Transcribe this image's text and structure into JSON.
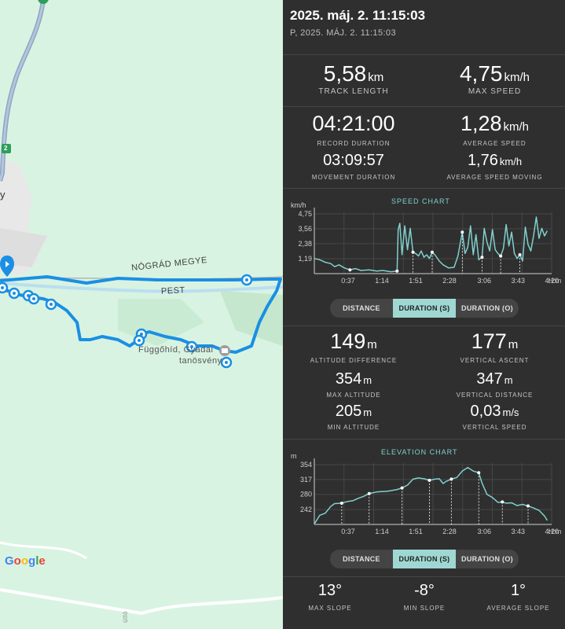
{
  "map": {
    "county_label": "NÓGRÁD MEGYE",
    "pest_label": "PEST",
    "poi_label_1": "Függőhíd, Gyadai",
    "poi_label_2": "tanösvény",
    "road_number": "2",
    "town_fragment": "y",
    "road_fragment": "útló",
    "google_logo": [
      "G",
      "o",
      "o",
      "g",
      "l",
      "e"
    ],
    "track_color": "#1a8fe3",
    "map_color": "#d9f3e2"
  },
  "header": {
    "title": "2025. máj. 2. 11:15:03",
    "subtitle": "P, 2025. MÁJ. 2. 11:15:03"
  },
  "stats_top": {
    "track_length": {
      "value": "5,58",
      "unit": "km",
      "label": "TRACK LENGTH"
    },
    "max_speed": {
      "value": "4,75",
      "unit": "km/h",
      "label": "MAX SPEED"
    },
    "record_duration": {
      "value": "04:21:00",
      "label": "RECORD DURATION"
    },
    "average_speed": {
      "value": "1,28",
      "unit": "km/h",
      "label": "AVERAGE SPEED"
    },
    "movement_duration": {
      "value": "03:09:57",
      "label": "MOVEMENT DURATION"
    },
    "avg_speed_moving": {
      "value": "1,76",
      "unit": "km/h",
      "label": "AVERAGE SPEED MOVING"
    }
  },
  "speed_chart": {
    "title": "SPEED CHART",
    "unit_label": "km/h",
    "y_ticks": [
      "4,75",
      "3,56",
      "2,38",
      "1,19"
    ],
    "x_ticks": [
      "0:37",
      "1:14",
      "1:51",
      "2:28",
      "3:06",
      "3:43",
      "4:20"
    ],
    "x_unit": "H:m",
    "tabs": [
      "DISTANCE",
      "DURATION (S)",
      "DURATION (O)"
    ],
    "active_tab": 1
  },
  "stats_mid": {
    "altitude_difference": {
      "value": "149",
      "unit": "m",
      "label": "ALTITUDE DIFFERENCE"
    },
    "vertical_ascent": {
      "value": "177",
      "unit": "m",
      "label": "VERTICAL ASCENT"
    },
    "max_altitude": {
      "value": "354",
      "unit": "m",
      "label": "MAX ALTITUDE"
    },
    "vertical_distance": {
      "value": "347",
      "unit": "m",
      "label": "VERTICAL DISTANCE"
    },
    "min_altitude": {
      "value": "205",
      "unit": "m",
      "label": "MIN ALTITUDE"
    },
    "vertical_speed": {
      "value": "0,03",
      "unit": "m/s",
      "label": "VERTICAL SPEED"
    }
  },
  "elevation_chart": {
    "title": "ELEVATION CHART",
    "unit_label": "m",
    "y_ticks": [
      "354",
      "317",
      "280",
      "242"
    ],
    "x_ticks": [
      "0:37",
      "1:14",
      "1:51",
      "2:28",
      "3:06",
      "3:43",
      "4:20"
    ],
    "x_unit": "H:m",
    "tabs": [
      "DISTANCE",
      "DURATION (S)",
      "DURATION (O)"
    ],
    "active_tab": 1
  },
  "stats_bottom": {
    "max_slope": {
      "value": "13°",
      "label": "MAX SLOPE"
    },
    "min_slope": {
      "value": "-8°",
      "label": "MIN SLOPE"
    },
    "average_slope": {
      "value": "1°",
      "label": "AVERAGE SLOPE"
    }
  },
  "chart_data": [
    {
      "type": "line",
      "title": "SPEED CHART",
      "ylabel": "km/h",
      "xlabel": "H:m",
      "ylim": [
        0,
        4.75
      ],
      "x": [
        0.0,
        0.1,
        0.2,
        0.3,
        0.37,
        0.45,
        0.55,
        0.65,
        0.75,
        0.85,
        1.0,
        1.14,
        1.25,
        1.4,
        1.51,
        1.53,
        1.56,
        1.6,
        1.65,
        1.7,
        1.75,
        1.8,
        1.85,
        1.9,
        1.95,
        2.0,
        2.05,
        2.1,
        2.15,
        2.2,
        2.28,
        2.35,
        2.45,
        2.55,
        2.62,
        2.7,
        2.75,
        2.8,
        2.85,
        2.9,
        2.95,
        3.0,
        3.06,
        3.1,
        3.15,
        3.2,
        3.25,
        3.3,
        3.35,
        3.4,
        3.45,
        3.5,
        3.55,
        3.6,
        3.65,
        3.7,
        3.75,
        3.8,
        3.85,
        3.9,
        3.95,
        4.0,
        4.05,
        4.1,
        4.15,
        4.2,
        4.25
      ],
      "y": [
        1.2,
        1.1,
        0.9,
        0.8,
        0.55,
        0.7,
        0.45,
        0.3,
        0.4,
        0.25,
        0.3,
        0.2,
        0.25,
        0.15,
        0.2,
        3.5,
        4.0,
        1.5,
        3.8,
        1.9,
        3.6,
        1.7,
        1.6,
        1.4,
        1.8,
        1.3,
        1.5,
        1.2,
        1.7,
        1.5,
        1.0,
        0.7,
        0.45,
        0.5,
        1.4,
        3.3,
        1.6,
        2.1,
        3.8,
        1.5,
        3.1,
        1.1,
        1.3,
        3.6,
        2.5,
        1.8,
        3.5,
        1.9,
        1.6,
        1.4,
        2.0,
        3.9,
        2.2,
        3.3,
        1.6,
        1.2,
        1.5,
        1.0,
        3.7,
        2.3,
        1.8,
        3.0,
        4.5,
        2.8,
        3.6,
        3.0,
        3.4
      ],
      "x_ticks": [
        "0:37",
        "1:14",
        "1:51",
        "2:28",
        "3:06",
        "3:43",
        "4:20"
      ],
      "y_ticks": [
        "1,19",
        "2,38",
        "3,56",
        "4,75"
      ]
    },
    {
      "type": "line",
      "title": "ELEVATION CHART",
      "ylabel": "m",
      "xlabel": "H:m",
      "ylim": [
        205,
        354
      ],
      "x": [
        0.0,
        0.1,
        0.2,
        0.3,
        0.37,
        0.5,
        0.6,
        0.7,
        0.8,
        0.9,
        1.0,
        1.14,
        1.25,
        1.35,
        1.51,
        1.6,
        1.7,
        1.8,
        1.9,
        2.0,
        2.1,
        2.2,
        2.28,
        2.35,
        2.4,
        2.5,
        2.6,
        2.7,
        2.8,
        2.9,
        3.0,
        3.06,
        3.15,
        3.25,
        3.35,
        3.43,
        3.5,
        3.6,
        3.7,
        3.8,
        3.9,
        4.0,
        4.1,
        4.2,
        4.25
      ],
      "y": [
        206,
        228,
        233,
        250,
        257,
        258,
        262,
        264,
        270,
        275,
        282,
        286,
        287,
        288,
        292,
        296,
        303,
        318,
        321,
        319,
        315,
        318,
        319,
        307,
        312,
        318,
        322,
        338,
        347,
        338,
        334,
        308,
        280,
        272,
        260,
        261,
        258,
        259,
        252,
        255,
        251,
        246,
        240,
        226,
        215
      ],
      "x_ticks": [
        "0:37",
        "1:14",
        "1:51",
        "2:28",
        "3:06",
        "3:43",
        "4:20"
      ],
      "y_ticks": [
        "242",
        "280",
        "317",
        "354"
      ]
    }
  ]
}
